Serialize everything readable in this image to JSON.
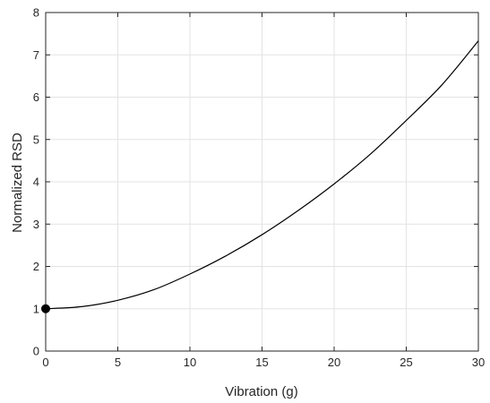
{
  "chart_data": {
    "type": "line",
    "title": "",
    "xlabel": "Vibration (g)",
    "ylabel": "Normalized RSD",
    "xlim": [
      0,
      30
    ],
    "ylim": [
      0,
      8
    ],
    "xticks": [
      "0",
      "5",
      "10",
      "15",
      "20",
      "25",
      "30"
    ],
    "yticks": [
      "0",
      "1",
      "2",
      "3",
      "4",
      "5",
      "6",
      "7",
      "8"
    ],
    "grid": true,
    "series": [
      {
        "color": "#000000",
        "x": [
          0,
          2.5,
          5,
          7.5,
          10,
          12.5,
          15,
          17.5,
          20,
          22.5,
          25,
          27.5,
          30
        ],
        "y": [
          1.0,
          1.05,
          1.2,
          1.45,
          1.82,
          2.25,
          2.75,
          3.32,
          3.95,
          4.65,
          5.45,
          6.3,
          7.33
        ]
      }
    ],
    "markers": [
      {
        "x": 0,
        "y": 1.0,
        "color": "#000000",
        "shape": "filled-circle"
      }
    ]
  }
}
